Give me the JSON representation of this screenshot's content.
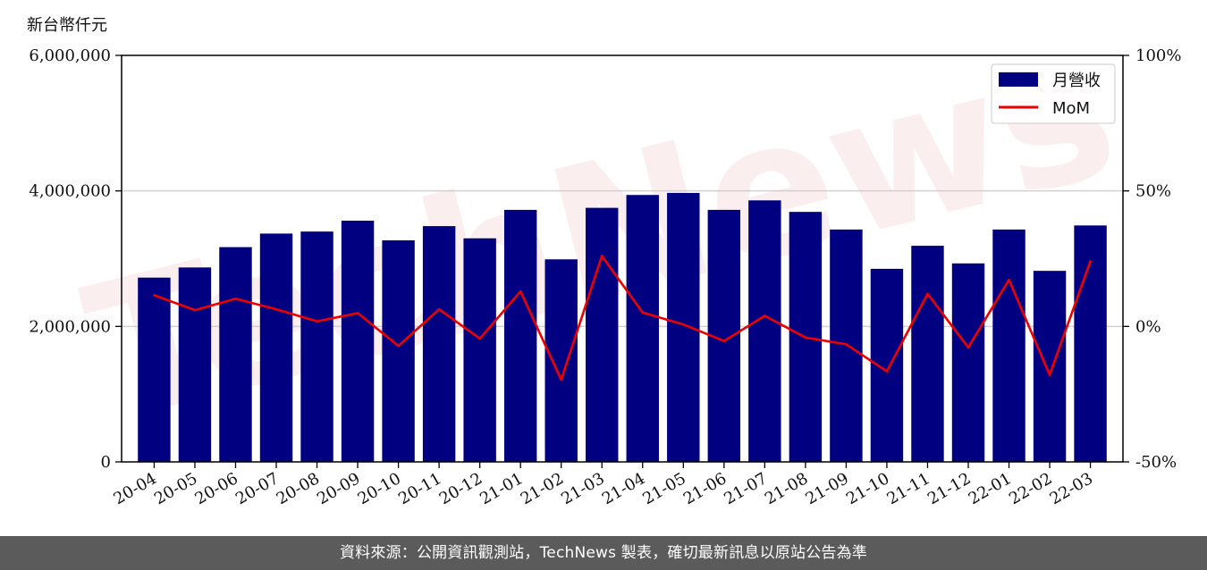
{
  "chart_data": {
    "type": "bar",
    "categories": [
      "20-04",
      "20-05",
      "20-06",
      "20-07",
      "20-08",
      "20-09",
      "20-10",
      "20-11",
      "20-12",
      "21-01",
      "21-02",
      "21-03",
      "21-04",
      "21-05",
      "21-06",
      "21-07",
      "21-08",
      "21-09",
      "21-10",
      "21-11",
      "21-12",
      "22-01",
      "22-02",
      "22-03"
    ],
    "series": [
      {
        "name": "月營收",
        "axis": "left",
        "type": "bar",
        "color": "#000080",
        "values": [
          2720000,
          2870000,
          3170000,
          3370000,
          3400000,
          3560000,
          3270000,
          3480000,
          3300000,
          3720000,
          2990000,
          3750000,
          3940000,
          3970000,
          3720000,
          3860000,
          3690000,
          3430000,
          2850000,
          3190000,
          2930000,
          3430000,
          2820000,
          3490000
        ]
      },
      {
        "name": "MoM",
        "axis": "right",
        "type": "line",
        "color": "#ee0000",
        "values": [
          11.5,
          6.0,
          10.2,
          6.3,
          1.9,
          4.9,
          -7.2,
          6.3,
          -4.5,
          12.9,
          -19.7,
          26.0,
          5.1,
          0.7,
          -5.4,
          3.9,
          -4.1,
          -6.6,
          -16.6,
          12.0,
          -7.8,
          17.2,
          -17.9,
          24.0
        ]
      }
    ],
    "ylim_left": [
      0,
      6000000
    ],
    "ylim_right": [
      -50,
      100
    ],
    "yticks_left": [
      "0",
      "2,000,000",
      "4,000,000",
      "6,000,000"
    ],
    "yticks_right": [
      "-50%",
      "0%",
      "50%",
      "100%"
    ],
    "ylabel": "新台幣仟元",
    "grid": "horizontal",
    "legend_position": "top-right",
    "watermark": "TechNews"
  },
  "footer": {
    "source_text": "資料來源：公開資訊觀測站，TechNews 製表，確切最新訊息以原站公告為準"
  }
}
